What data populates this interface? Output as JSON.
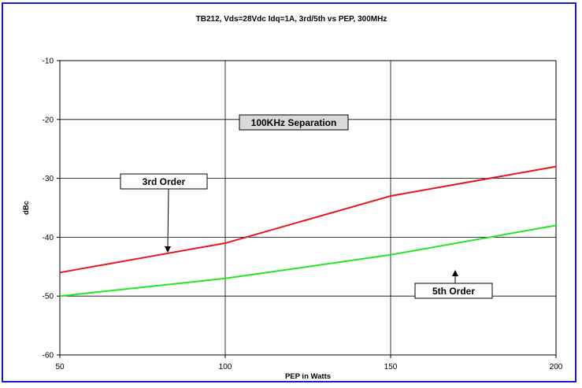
{
  "chart_data": {
    "type": "line",
    "title": "TB212, Vds=28Vdc Idq=1A, 3rd/5th vs PEP, 300MHz",
    "xlabel": "PEP in Watts",
    "ylabel": "dBc",
    "xlim": [
      50,
      200
    ],
    "ylim": [
      -60,
      -10
    ],
    "x_ticks": [
      "50",
      "100",
      "150",
      "200"
    ],
    "y_ticks": [
      "-10",
      "-20",
      "-30",
      "-40",
      "-50",
      "-60"
    ],
    "grid": true,
    "series": [
      {
        "name": "3rd Order",
        "color": "#e8141e",
        "x": [
          50,
          100,
          150,
          200
        ],
        "y": [
          -46,
          -41,
          -33,
          -28
        ]
      },
      {
        "name": "5th Order",
        "color": "#22e822",
        "x": [
          50,
          100,
          150,
          200
        ],
        "y": [
          -50,
          -47,
          -43,
          -38
        ]
      }
    ],
    "annotations": {
      "separation": "100KHz Separation",
      "third_order": "3rd Order",
      "fifth_order": "5th Order"
    }
  }
}
